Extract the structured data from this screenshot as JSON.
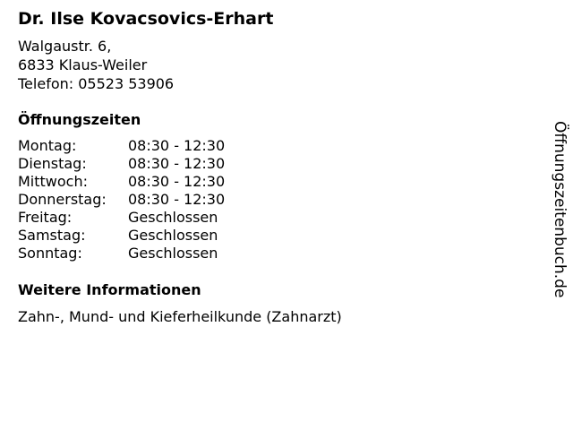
{
  "title": "Dr. Ilse Kovacsovics-Erhart",
  "address": [
    "Walgaustr. 6,",
    "6833 Klaus-Weiler",
    "Telefon: 05523 53906"
  ],
  "hours_heading": "Öffnungszeiten",
  "hours": [
    {
      "day": "Montag:",
      "time": "08:30 - 12:30"
    },
    {
      "day": "Dienstag:",
      "time": "08:30 - 12:30"
    },
    {
      "day": "Mittwoch:",
      "time": "08:30 - 12:30"
    },
    {
      "day": "Donnerstag:",
      "time": "08:30 - 12:30"
    },
    {
      "day": "Freitag:",
      "time": "Geschlossen"
    },
    {
      "day": "Samstag:",
      "time": "Geschlossen"
    },
    {
      "day": "Sonntag:",
      "time": "Geschlossen"
    }
  ],
  "info_heading": "Weitere Informationen",
  "info_text": "Zahn-, Mund- und Kieferheilkunde (Zahnarzt)",
  "watermark": "Öffnungszeitenbuch.de"
}
